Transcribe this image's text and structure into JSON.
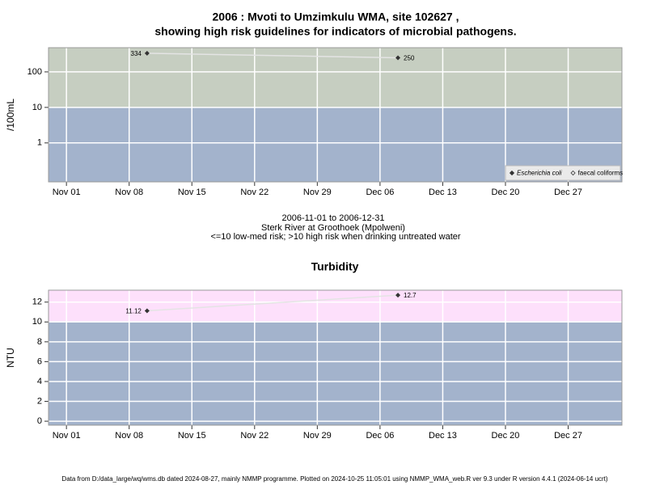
{
  "chart_data": [
    {
      "type": "line",
      "title": "2006 : Mvoti to Umzimkulu WMA, site 102627 ,",
      "subtitle": "showing high risk guidelines for indicators of microbial pathogens.",
      "y_label": "/100mL",
      "log_y": true,
      "xlim": [
        "2006-10-30",
        "2007-01-02"
      ],
      "xticks": [
        {
          "value": "2006-11-01",
          "label": "Nov 01"
        },
        {
          "value": "2006-11-08",
          "label": "Nov 08"
        },
        {
          "value": "2006-11-15",
          "label": "Nov 15"
        },
        {
          "value": "2006-11-22",
          "label": "Nov 22"
        },
        {
          "value": "2006-11-29",
          "label": "Nov 29"
        },
        {
          "value": "2006-12-06",
          "label": "Dec 06"
        },
        {
          "value": "2006-12-13",
          "label": "Dec 13"
        },
        {
          "value": "2006-12-20",
          "label": "Dec 20"
        },
        {
          "value": "2006-12-27",
          "label": "Dec 27"
        }
      ],
      "ylim": [
        0.08,
        480
      ],
      "yticks": [
        1,
        10,
        100
      ],
      "grid": true,
      "guideline": 10,
      "band_colors": {
        "below": "#a3b3cc",
        "above": "#c6cec1"
      },
      "line_color": "#e4e4e4",
      "legend": "bottom-right",
      "series": [
        {
          "name": "Escherichia coli",
          "color": "#333333",
          "x": [
            "2006-11-10",
            "2006-12-08"
          ],
          "values": [
            334,
            250
          ]
        },
        {
          "name": "faecal coliforms",
          "color": "#333333",
          "x": [],
          "values": []
        }
      ],
      "annotations": [
        "2006-11-01 to 2006-12-31",
        "Sterk River at Groothoek (Mpolweni)",
        "<=10 low-med risk; >10 high risk when drinking untreated water"
      ]
    },
    {
      "type": "line",
      "title": "Turbidity",
      "y_label": "NTU",
      "log_y": false,
      "xlim": [
        "2006-10-30",
        "2007-01-02"
      ],
      "xticks": [
        {
          "value": "2006-11-01",
          "label": "Nov 01"
        },
        {
          "value": "2006-11-08",
          "label": "Nov 08"
        },
        {
          "value": "2006-11-15",
          "label": "Nov 15"
        },
        {
          "value": "2006-11-22",
          "label": "Nov 22"
        },
        {
          "value": "2006-11-29",
          "label": "Nov 29"
        },
        {
          "value": "2006-12-06",
          "label": "Dec 06"
        },
        {
          "value": "2006-12-13",
          "label": "Dec 13"
        },
        {
          "value": "2006-12-20",
          "label": "Dec 20"
        },
        {
          "value": "2006-12-27",
          "label": "Dec 27"
        }
      ],
      "ylim": [
        -0.4,
        13.2
      ],
      "yticks": [
        0,
        2,
        4,
        6,
        8,
        10,
        12
      ],
      "grid": true,
      "guideline": 10,
      "band_colors": {
        "below": "#a3b3cc",
        "above": "#fde0fb"
      },
      "line_color": "#e4e4e4",
      "series": [
        {
          "name": "Turbidity",
          "color": "#333333",
          "x": [
            "2006-11-10",
            "2006-12-08"
          ],
          "values": [
            11.12,
            12.7
          ]
        }
      ]
    }
  ],
  "footer": "Data from D:/data_large/wq/wms.db dated 2024-08-27, mainly NMMP programme. Plotted on 2024-10-25 11:05:01 using NMMP_WMA_web.R ver 9.3 under R version 4.4.1 (2024-06-14 ucrt)"
}
